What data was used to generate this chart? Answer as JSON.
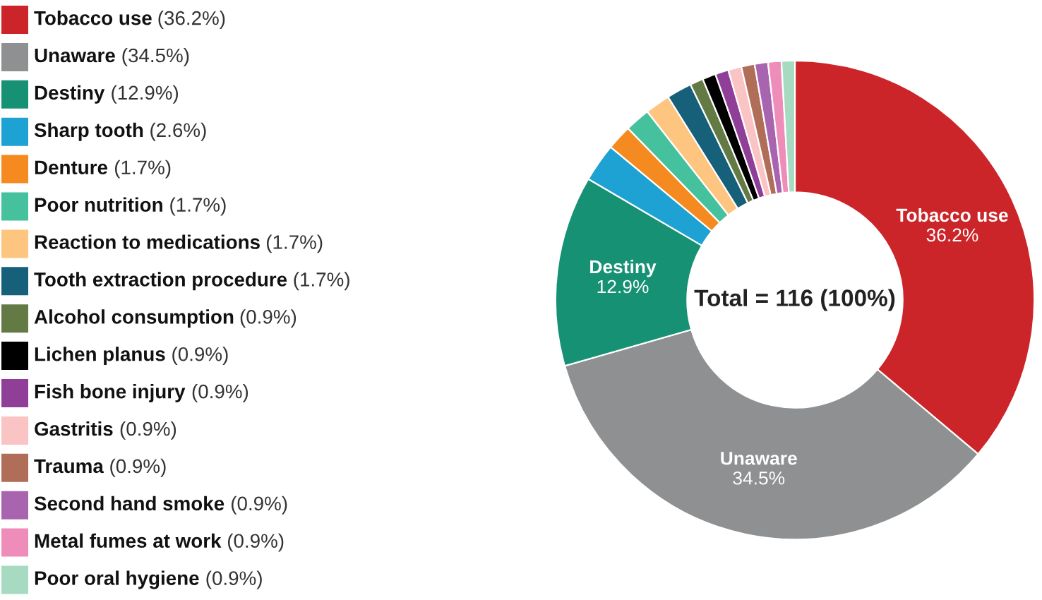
{
  "chart_data": {
    "type": "donut",
    "categories": [
      "Tobacco use",
      "Unaware",
      "Destiny",
      "Sharp tooth",
      "Denture",
      "Poor nutrition",
      "Reaction to medications",
      "Tooth extraction procedure",
      "Alcohol consumption",
      "Lichen planus",
      "Fish bone injury",
      "Gastritis",
      "Trauma",
      "Second hand smoke",
      "Metal fumes at work",
      "Poor oral hygiene"
    ],
    "values": [
      36.2,
      34.5,
      12.9,
      2.6,
      1.7,
      1.7,
      1.7,
      1.7,
      0.9,
      0.9,
      0.9,
      0.9,
      0.9,
      0.9,
      0.9,
      0.9
    ],
    "colors": [
      "#cc2529",
      "#8e9091",
      "#179173",
      "#1ea2d3",
      "#f58a20",
      "#45c19d",
      "#fdc57f",
      "#16607a",
      "#647a45",
      "#000000",
      "#8f3f98",
      "#f9c4c3",
      "#b06e58",
      "#a964b0",
      "#ef8dba",
      "#a6dbc2"
    ],
    "value_labels": [
      "(36.2%)",
      "(34.5%)",
      "(12.9%)",
      "(2.6%)",
      "(1.7%)",
      "(1.7%)",
      "(1.7%)",
      "(1.7%)",
      "(0.9%)",
      "(0.9%)",
      "(0.9%)",
      "(0.9%)",
      "(0.9%)",
      "(0.9%)",
      "(0.9%)",
      "(0.9%)"
    ],
    "legend": "left",
    "annotations": [
      "Total = 116 (100%)",
      {
        "text": "36.2%",
        "x": "Tobacco use"
      },
      {
        "text": "34.5%",
        "x": "Unaware"
      },
      {
        "text": "12.9%",
        "x": "Destiny"
      }
    ]
  }
}
